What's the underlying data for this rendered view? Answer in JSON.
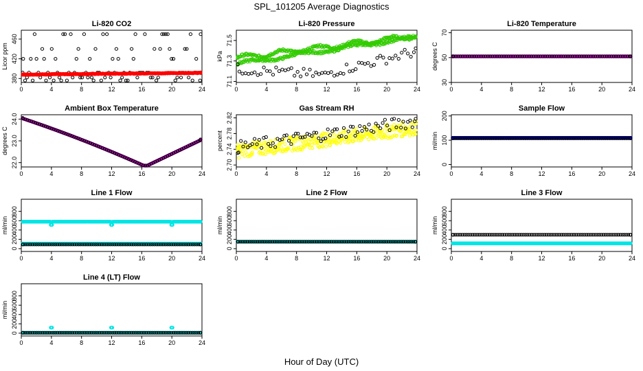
{
  "title": "SPL_101205  Average Diagnostics",
  "xlabel": "Hour of Day (UTC)",
  "colors": {
    "red": "#ff0000",
    "green": "#33cc00",
    "magenta": "#cc00cc",
    "yellow": "#ffff00",
    "blue": "#0000cc",
    "cyan": "#00e5e5",
    "black": "#000000"
  },
  "chart_data": [
    {
      "id": "p1",
      "title": "Li-820 CO2",
      "ylabel": "Licor ppm",
      "type": "scatter",
      "xlim": [
        0,
        24
      ],
      "ylim": [
        372,
        478
      ],
      "xticks": [
        0,
        4,
        8,
        12,
        16,
        20,
        24
      ],
      "yticks": [
        380,
        420,
        460
      ],
      "series": [
        {
          "name": "raw",
          "color": "black",
          "fn": "co2raw",
          "n": 96
        },
        {
          "name": "avg",
          "color": "red",
          "fn": "co2avg",
          "n": 400,
          "filled": true
        }
      ]
    },
    {
      "id": "p2",
      "title": "Li-820 Pressure",
      "ylabel": "kPa",
      "type": "scatter",
      "xlim": [
        0,
        24
      ],
      "ylim": [
        71.09,
        71.6
      ],
      "xticks": [
        0,
        4,
        8,
        12,
        16,
        20,
        24
      ],
      "yticks": [
        71.1,
        71.3,
        71.5
      ],
      "series": [
        {
          "name": "a",
          "color": "green",
          "fn": "presA",
          "n": 240
        },
        {
          "name": "b",
          "color": "green",
          "fn": "presB",
          "n": 240
        },
        {
          "name": "raw",
          "color": "black",
          "fn": "presRaw",
          "n": 60
        }
      ]
    },
    {
      "id": "p3",
      "title": "Li-820 Temperature",
      "ylabel": "degrees C",
      "type": "scatter",
      "xlim": [
        0,
        24
      ],
      "ylim": [
        30,
        72
      ],
      "xticks": [
        0,
        4,
        8,
        12,
        16,
        20,
        24
      ],
      "yticks": [
        30,
        50,
        70
      ],
      "series": [
        {
          "name": "avg",
          "color": "magenta",
          "fn": "const51",
          "n": 400
        },
        {
          "name": "raw",
          "color": "black",
          "fn": "const51",
          "n": 80
        }
      ]
    },
    {
      "id": "p4",
      "title": "Ambient Box Temperature",
      "ylabel": "degrees C",
      "type": "scatter",
      "xlim": [
        0,
        24
      ],
      "ylim": [
        21.8,
        24.2
      ],
      "xticks": [
        0,
        4,
        8,
        12,
        16,
        20,
        24
      ],
      "yticks": [
        22.0,
        23.0,
        24.0
      ],
      "series": [
        {
          "name": "avg",
          "color": "magenta",
          "fn": "box",
          "n": 400
        },
        {
          "name": "raw",
          "color": "black",
          "fn": "box",
          "n": 90
        }
      ]
    },
    {
      "id": "p5",
      "title": "Gas Stream RH",
      "ylabel": "percent",
      "type": "scatter",
      "xlim": [
        0,
        24
      ],
      "ylim": [
        2.695,
        2.828
      ],
      "xticks": [
        0,
        4,
        8,
        12,
        16,
        20,
        24
      ],
      "yticks": [
        2.7,
        2.74,
        2.78,
        2.82
      ],
      "series": [
        {
          "name": "avg",
          "color": "yellow",
          "fn": "rh",
          "n": 350
        },
        {
          "name": "raw",
          "color": "black",
          "fn": "rhRaw",
          "n": 80
        }
      ]
    },
    {
      "id": "p6",
      "title": "Sample Flow",
      "ylabel": "ml/min",
      "type": "scatter",
      "xlim": [
        0,
        24
      ],
      "ylim": [
        -10,
        205
      ],
      "xticks": [
        0,
        4,
        8,
        12,
        16,
        20,
        24
      ],
      "yticks": [
        0,
        100,
        200
      ],
      "series": [
        {
          "name": "avg",
          "color": "blue",
          "fn": "const110",
          "n": 400
        },
        {
          "name": "raw",
          "color": "black",
          "fn": "const108",
          "n": 96
        }
      ]
    },
    {
      "id": "p7",
      "title": "Line 1 Flow",
      "ylabel": "ml/min",
      "type": "scatter",
      "xlim": [
        0,
        24
      ],
      "ylim": [
        -60,
        1060
      ],
      "xticks": [
        0,
        4,
        8,
        12,
        16,
        20,
        24
      ],
      "yticks": [
        0,
        200,
        400,
        600,
        800
      ],
      "series": [
        {
          "name": "avg",
          "color": "cyan",
          "fn": "l1a",
          "n": 400
        },
        {
          "name": "low",
          "color": "cyan",
          "fn": "const110",
          "n": 400
        },
        {
          "name": "raw",
          "color": "black",
          "fn": "const90",
          "n": 96
        }
      ]
    },
    {
      "id": "p8",
      "title": "Line 2 Flow",
      "ylabel": "ml/min",
      "type": "scatter",
      "xlim": [
        0,
        24
      ],
      "ylim": [
        -60,
        1060
      ],
      "xticks": [
        0,
        4,
        8,
        12,
        16,
        20,
        24
      ],
      "yticks": [
        0,
        200,
        400,
        600,
        800
      ],
      "series": [
        {
          "name": "avg",
          "color": "cyan",
          "fn": "const150",
          "n": 400
        },
        {
          "name": "raw",
          "color": "black",
          "fn": "const150",
          "n": 96
        }
      ]
    },
    {
      "id": "p9",
      "title": "Line 3 Flow",
      "ylabel": "ml/min",
      "type": "scatter",
      "xlim": [
        0,
        24
      ],
      "ylim": [
        -60,
        1060
      ],
      "xticks": [
        0,
        4,
        8,
        12,
        16,
        20,
        24
      ],
      "yticks": [
        0,
        200,
        400,
        600,
        800
      ],
      "series": [
        {
          "name": "avg",
          "color": "cyan",
          "fn": "const115",
          "n": 400
        },
        {
          "name": "raw",
          "color": "black",
          "fn": "const300",
          "n": 96
        }
      ]
    },
    {
      "id": "p10",
      "title": "Line 4 (LT) Flow",
      "ylabel": "ml/min",
      "type": "scatter",
      "xlim": [
        0,
        24
      ],
      "ylim": [
        -60,
        1060
      ],
      "xticks": [
        0,
        4,
        8,
        12,
        16,
        20,
        24
      ],
      "yticks": [
        0,
        200,
        400,
        600,
        800
      ],
      "series": [
        {
          "name": "avg",
          "color": "cyan",
          "fn": "l4",
          "n": 400
        },
        {
          "name": "raw",
          "color": "black",
          "fn": "const10",
          "n": 96
        }
      ]
    }
  ]
}
